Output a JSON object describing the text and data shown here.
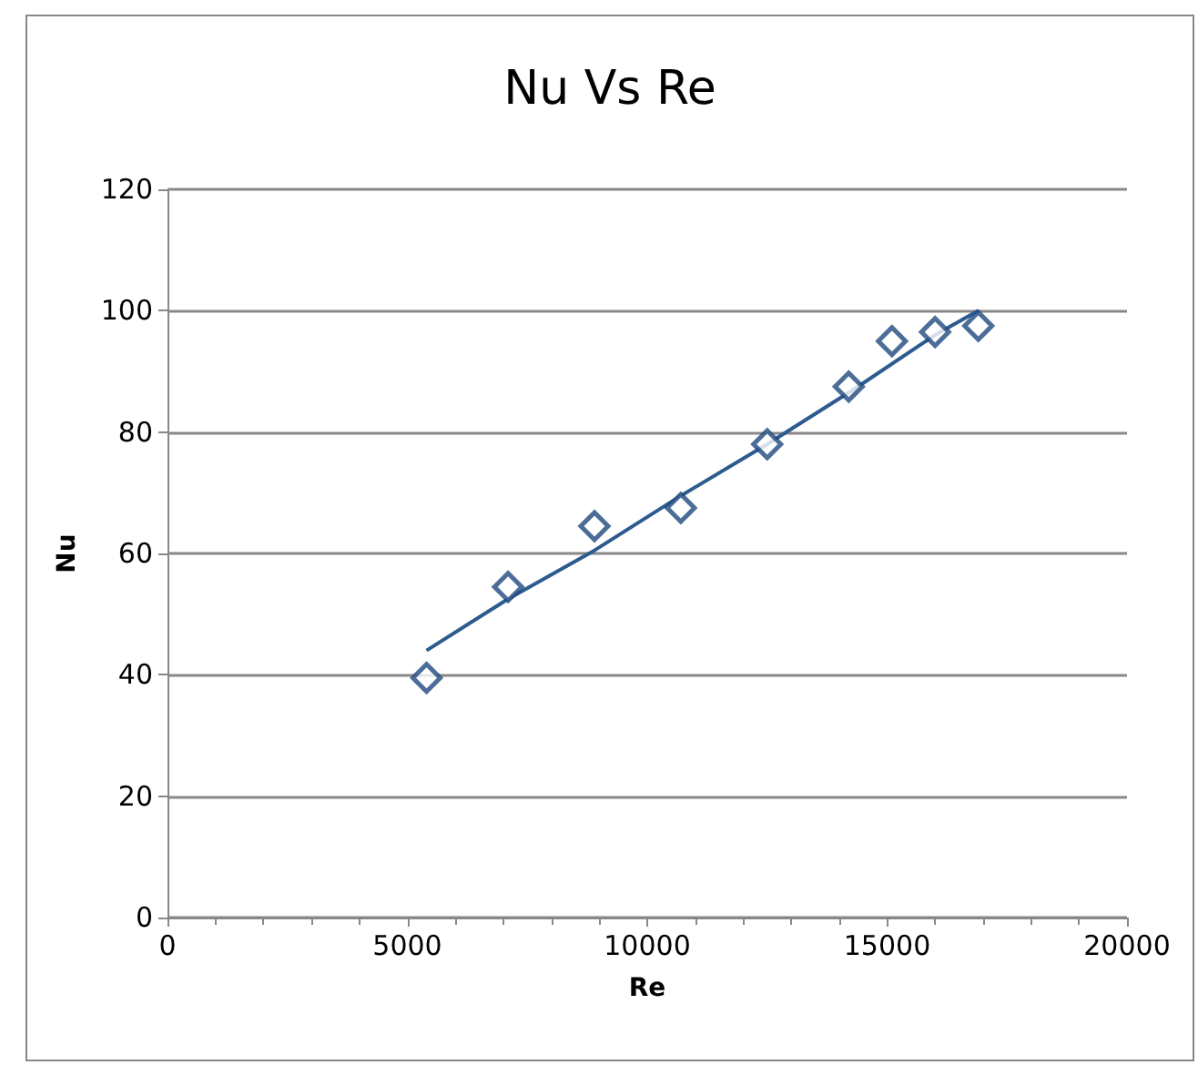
{
  "chart_data": {
    "type": "scatter",
    "title": "Nu Vs Re",
    "xlabel": "Re",
    "ylabel": "Nu",
    "xlim": [
      0,
      20000
    ],
    "xticks": [
      0,
      5000,
      10000,
      15000,
      20000
    ],
    "ylim": [
      0,
      120
    ],
    "yticks": [
      0,
      20,
      40,
      60,
      80,
      100,
      120
    ],
    "grid": "y",
    "series": [
      {
        "marker": "diamond",
        "color": "#1f497d",
        "x": [
          5400,
          7100,
          8900,
          10700,
          12500,
          14200,
          15100,
          16000,
          16900
        ],
        "values": [
          39.5,
          54.5,
          64.5,
          67.5,
          78,
          87.5,
          95,
          96.5,
          97.5
        ]
      },
      {
        "type": "line",
        "color": "#2e5b8f",
        "x": [
          5400,
          7100,
          8900,
          10700,
          12500,
          14300,
          16000,
          16900
        ],
        "values": [
          44,
          52.5,
          60.5,
          69.5,
          78,
          87,
          96,
          100
        ]
      }
    ]
  }
}
